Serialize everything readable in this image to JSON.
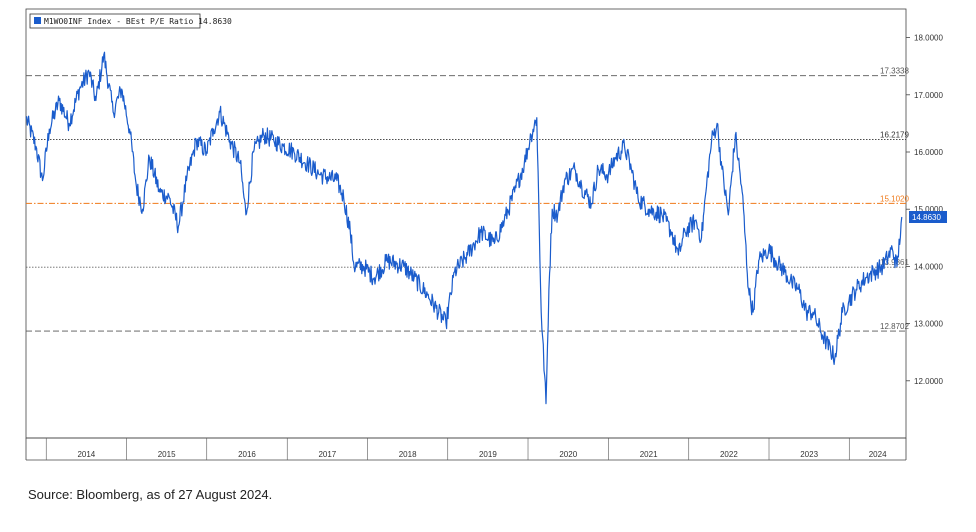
{
  "chart_data": {
    "type": "line",
    "legend": {
      "label": "M1WO0INF Index - BEst P/E Ratio 14.8630",
      "color": "#1a5ccc",
      "placement": "top-left"
    },
    "ylim": [
      11.0,
      18.5
    ],
    "y_ticks": [
      "18.0000",
      "17.0000",
      "16.0000",
      "15.0000",
      "14.0000",
      "13.0000",
      "12.0000"
    ],
    "y_tick_values": [
      18,
      17,
      16,
      15,
      14,
      13,
      12
    ],
    "x_ticks": [
      "2014",
      "2015",
      "2016",
      "2017",
      "2018",
      "2019",
      "2020",
      "2021",
      "2022",
      "2023",
      "2024"
    ],
    "xlim": [
      "2013-10-01",
      "2024-09-15"
    ],
    "grid": false,
    "reference_lines": [
      {
        "label": "17.3338",
        "value": 17.3338,
        "style": "dashed",
        "color": "#555555"
      },
      {
        "label": "16.2179",
        "value": 16.2179,
        "style": "dotted",
        "color": "#333333"
      },
      {
        "label": "15.1020",
        "value": 15.102,
        "style": "dash-dot",
        "color": "#f07a1a"
      },
      {
        "label": "13.9861",
        "value": 13.9861,
        "style": "dotted",
        "color": "#666666"
      },
      {
        "label": "12.8702",
        "value": 12.8702,
        "style": "dashed",
        "color": "#555555"
      }
    ],
    "last_value": {
      "label": "14.8630",
      "value": 14.863,
      "color": "#1a5ccc"
    },
    "series": [
      {
        "color": "#1a5ccc",
        "points": [
          [
            "2013-10-01",
            16.6
          ],
          [
            "2013-11-15",
            16.1
          ],
          [
            "2013-12-15",
            15.5
          ],
          [
            "2014-01-15",
            16.4
          ],
          [
            "2014-03-01",
            16.9
          ],
          [
            "2014-04-15",
            16.5
          ],
          [
            "2014-06-01",
            17.1
          ],
          [
            "2014-07-15",
            17.4
          ],
          [
            "2014-08-15",
            16.9
          ],
          [
            "2014-09-20",
            17.7
          ],
          [
            "2014-11-01",
            16.7
          ],
          [
            "2014-12-10",
            17.1
          ],
          [
            "2015-01-15",
            16.4
          ],
          [
            "2015-02-15",
            15.4
          ],
          [
            "2015-03-15",
            15.0
          ],
          [
            "2015-04-15",
            15.9
          ],
          [
            "2015-06-01",
            15.3
          ],
          [
            "2015-07-15",
            15.2
          ],
          [
            "2015-08-25",
            14.7
          ],
          [
            "2015-10-01",
            15.5
          ],
          [
            "2015-11-15",
            16.2
          ],
          [
            "2015-12-31",
            16.0
          ],
          [
            "2016-02-01",
            16.4
          ],
          [
            "2016-03-01",
            16.7
          ],
          [
            "2016-04-15",
            16.2
          ],
          [
            "2016-06-01",
            15.8
          ],
          [
            "2016-06-27",
            14.9
          ],
          [
            "2016-08-01",
            16.0
          ],
          [
            "2016-09-15",
            16.3
          ],
          [
            "2016-11-01",
            16.2
          ],
          [
            "2016-12-15",
            16.1
          ],
          [
            "2017-02-01",
            16.0
          ],
          [
            "2017-04-01",
            15.8
          ],
          [
            "2017-06-01",
            15.6
          ],
          [
            "2017-08-15",
            15.5
          ],
          [
            "2017-09-15",
            15.2
          ],
          [
            "2017-10-15",
            14.6
          ],
          [
            "2017-11-01",
            14.0
          ],
          [
            "2017-12-15",
            14.0
          ],
          [
            "2018-02-01",
            13.8
          ],
          [
            "2018-04-01",
            14.1
          ],
          [
            "2018-06-15",
            14.0
          ],
          [
            "2018-08-01",
            13.8
          ],
          [
            "2018-10-01",
            13.5
          ],
          [
            "2018-12-24",
            13.0
          ],
          [
            "2019-02-01",
            13.9
          ],
          [
            "2019-04-01",
            14.2
          ],
          [
            "2019-06-01",
            14.6
          ],
          [
            "2019-08-01",
            14.4
          ],
          [
            "2019-09-15",
            14.8
          ],
          [
            "2019-11-01",
            15.3
          ],
          [
            "2019-12-15",
            15.8
          ],
          [
            "2020-01-15",
            16.3
          ],
          [
            "2020-02-10",
            16.6
          ],
          [
            "2020-03-01",
            13.2
          ],
          [
            "2020-03-23",
            11.6
          ],
          [
            "2020-04-05",
            13.6
          ],
          [
            "2020-04-20",
            15.0
          ],
          [
            "2020-05-15",
            14.9
          ],
          [
            "2020-06-15",
            15.5
          ],
          [
            "2020-08-01",
            15.7
          ],
          [
            "2020-09-01",
            15.4
          ],
          [
            "2020-10-15",
            15.1
          ],
          [
            "2020-11-15",
            15.7
          ],
          [
            "2020-12-31",
            15.6
          ],
          [
            "2021-02-01",
            15.9
          ],
          [
            "2021-03-15",
            16.1
          ],
          [
            "2021-04-15",
            15.7
          ],
          [
            "2021-05-15",
            15.2
          ],
          [
            "2021-07-01",
            15.0
          ],
          [
            "2021-09-01",
            14.9
          ],
          [
            "2021-10-15",
            14.6
          ],
          [
            "2021-11-15",
            14.2
          ],
          [
            "2021-12-15",
            14.6
          ],
          [
            "2022-01-31",
            14.8
          ],
          [
            "2022-02-28",
            14.5
          ],
          [
            "2022-03-20",
            15.3
          ],
          [
            "2022-04-15",
            16.2
          ],
          [
            "2022-05-10",
            16.5
          ],
          [
            "2022-06-01",
            15.7
          ],
          [
            "2022-06-30",
            14.9
          ],
          [
            "2022-08-01",
            16.3
          ],
          [
            "2022-09-01",
            15.3
          ],
          [
            "2022-09-30",
            13.6
          ],
          [
            "2022-10-20",
            13.2
          ],
          [
            "2022-11-15",
            14.1
          ],
          [
            "2022-12-31",
            14.3
          ],
          [
            "2023-02-01",
            14.1
          ],
          [
            "2023-03-15",
            13.9
          ],
          [
            "2023-04-15",
            13.7
          ],
          [
            "2023-05-15",
            13.6
          ],
          [
            "2023-06-20",
            13.2
          ],
          [
            "2023-07-20",
            13.2
          ],
          [
            "2023-09-01",
            12.8
          ],
          [
            "2023-10-27",
            12.4
          ],
          [
            "2023-12-01",
            13.2
          ],
          [
            "2023-12-31",
            13.4
          ],
          [
            "2024-02-01",
            13.6
          ],
          [
            "2024-03-15",
            13.8
          ],
          [
            "2024-04-20",
            13.9
          ],
          [
            "2024-06-01",
            14.0
          ],
          [
            "2024-07-15",
            14.3
          ],
          [
            "2024-08-05",
            14.0
          ],
          [
            "2024-08-27",
            14.863
          ]
        ]
      }
    ]
  },
  "source_note": "Source: Bloomberg, as of 27 August 2024."
}
